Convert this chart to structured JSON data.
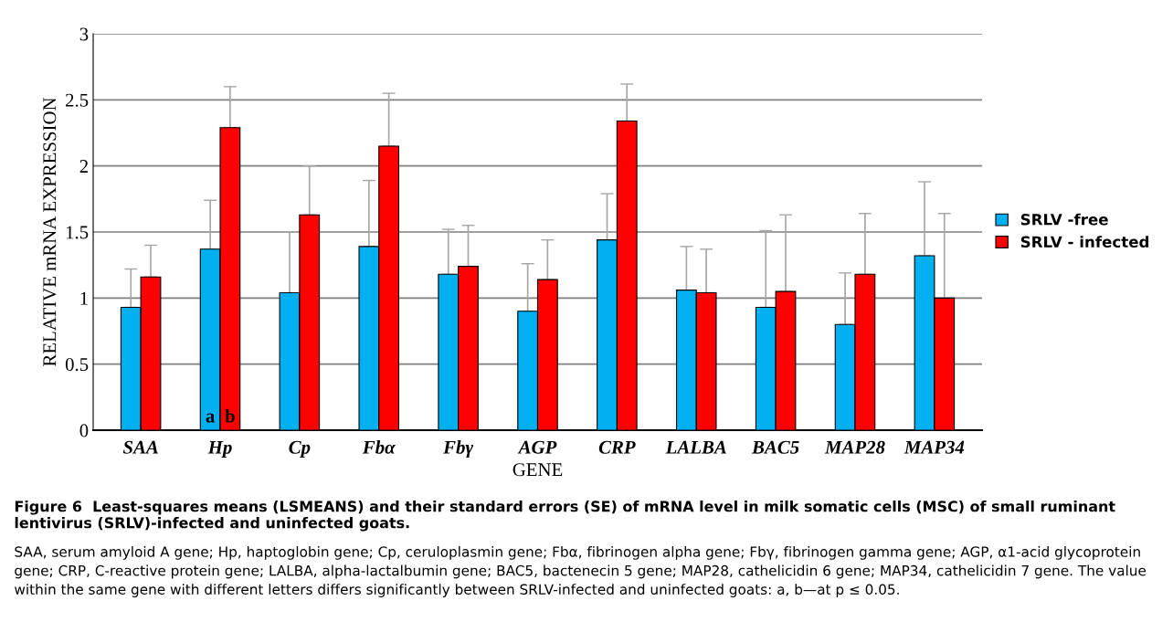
{
  "chart_data": {
    "type": "bar",
    "title": "Figure 6  Least-squares means (LSMEANS) and their standard errors (SE) of mRNA level in milk somatic cells (MSC) of small ruminant lentivirus (SRLV)-infected and uninfected goats.",
    "xlabel": "GENE",
    "ylabel": "RELATIVE mRNA EXPRESSION",
    "categories": [
      "SAA",
      "Hp",
      "Cp",
      "Fbα",
      "Fbγ",
      "AGP",
      "CRP",
      "LALBA",
      "BAC5",
      "MAP28",
      "MAP34"
    ],
    "series": [
      {
        "name": "SRLV -free",
        "color": "#00b0f0",
        "values": [
          0.93,
          1.37,
          1.04,
          1.39,
          1.18,
          0.9,
          1.44,
          1.06,
          0.93,
          0.8,
          1.32
        ],
        "errors": [
          [
            0.93,
            1.22
          ],
          [
            1.37,
            1.74
          ],
          [
            1.04,
            1.5
          ],
          [
            1.39,
            1.89
          ],
          [
            1.18,
            1.52
          ],
          [
            0.9,
            1.26
          ],
          [
            1.44,
            1.79
          ],
          [
            1.06,
            1.39
          ],
          [
            0.93,
            1.51
          ],
          [
            0.8,
            1.19
          ],
          [
            1.32,
            1.88
          ]
        ]
      },
      {
        "name": "SRLV - infected",
        "color": "#ff0000",
        "values": [
          1.16,
          2.29,
          1.63,
          2.15,
          1.24,
          1.14,
          2.34,
          1.04,
          1.05,
          1.18,
          1.0
        ],
        "errors": [
          [
            1.16,
            1.4
          ],
          [
            2.29,
            2.6
          ],
          [
            1.63,
            2.0
          ],
          [
            2.15,
            2.55
          ],
          [
            1.24,
            1.55
          ],
          [
            1.14,
            1.44
          ],
          [
            2.34,
            2.62
          ],
          [
            1.04,
            1.37
          ],
          [
            1.05,
            1.63
          ],
          [
            1.18,
            1.64
          ],
          [
            1.0,
            1.64
          ]
        ]
      }
    ],
    "ylim": [
      0,
      3
    ],
    "yticks": [
      0,
      0.5,
      1,
      1.5,
      2,
      2.5,
      3
    ],
    "grid": "y",
    "legend": "right",
    "annotations": [
      {
        "text": "a",
        "x": "Hp",
        "y": 0
      },
      {
        "text": "b",
        "x": "Hp",
        "y": 0
      },
      "SAA, serum amyloid A gene; Hp, haptoglobin gene; Cp, ceruloplasmin gene; Fbα, fibrinogen alpha gene; Fbγ, fibrinogen gamma gene; AGP, α1-acid glycoprotein gene; CRP, C-reactive protein gene; LALBA, alpha-lactalbumin gene; BAC5, bactenecin 5 gene; MAP28, cathelicidin 6 gene; MAP34, cathelicidin 7 gene. The value within the same gene with different letters differs significantly between SRLV-infected and uninfected goats: a, b—at p ≤ 0.05."
    ]
  }
}
